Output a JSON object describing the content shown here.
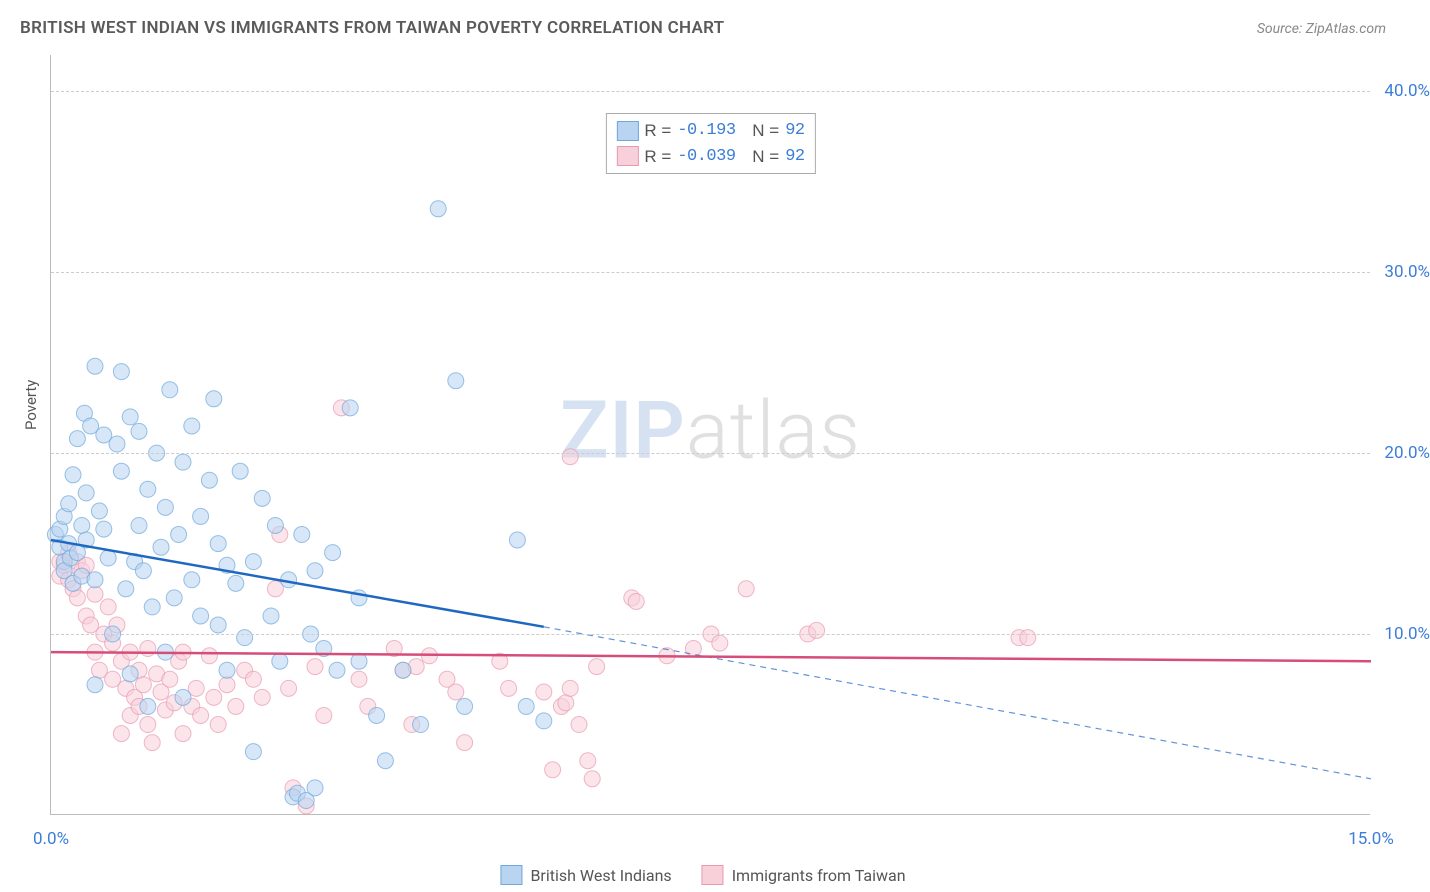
{
  "title": "BRITISH WEST INDIAN VS IMMIGRANTS FROM TAIWAN POVERTY CORRELATION CHART",
  "source": "Source: ZipAtlas.com",
  "y_axis_title": "Poverty",
  "watermark": {
    "part1": "ZIP",
    "part2": "atlas"
  },
  "colors": {
    "series_a_fill": "#b8d4f0",
    "series_a_stroke": "#6ea8dc",
    "series_a_line": "#1f68c1",
    "series_b_fill": "#f8d0da",
    "series_b_stroke": "#e89ab0",
    "series_b_line": "#d64d7a",
    "tick_text": "#3b7dd8",
    "grid": "#cccccc",
    "axis": "#bbbbbb",
    "title_text": "#5a5a5a",
    "source_text": "#888888"
  },
  "axes": {
    "x": {
      "min": 0.0,
      "max": 15.0,
      "ticks": [
        0.0,
        15.0
      ],
      "tick_labels": [
        "0.0%",
        "15.0%"
      ]
    },
    "y": {
      "min": 0.0,
      "max": 42.0,
      "grid_at": [
        10,
        20,
        30,
        40
      ],
      "tick_labels": [
        "10.0%",
        "20.0%",
        "30.0%",
        "40.0%"
      ]
    }
  },
  "stat_box": {
    "rows": [
      {
        "swatch": "a",
        "r_label": "R =",
        "r": "-0.193",
        "n_label": "N =",
        "n": "92"
      },
      {
        "swatch": "b",
        "r_label": "R =",
        "r": "-0.039",
        "n_label": "N =",
        "n": "92"
      }
    ]
  },
  "legend": {
    "a": "British West Indians",
    "b": "Immigrants from Taiwan"
  },
  "marker": {
    "radius": 8,
    "opacity": 0.55
  },
  "series_a": {
    "type": "scatter",
    "trend": {
      "solid_from_x": 0.0,
      "solid_to_x": 5.6,
      "y_start": 15.2,
      "y_at_solid_end": 10.4,
      "dashed_to_x": 15.0,
      "y_end": 2.0
    },
    "points": [
      [
        0.05,
        15.5
      ],
      [
        0.1,
        14.8
      ],
      [
        0.1,
        15.8
      ],
      [
        0.15,
        14.0
      ],
      [
        0.15,
        16.5
      ],
      [
        0.15,
        13.5
      ],
      [
        0.2,
        15.0
      ],
      [
        0.2,
        17.2
      ],
      [
        0.22,
        14.2
      ],
      [
        0.25,
        18.8
      ],
      [
        0.25,
        12.8
      ],
      [
        0.3,
        14.5
      ],
      [
        0.3,
        20.8
      ],
      [
        0.35,
        13.2
      ],
      [
        0.35,
        16.0
      ],
      [
        0.38,
        22.2
      ],
      [
        0.4,
        15.2
      ],
      [
        0.4,
        17.8
      ],
      [
        0.45,
        21.5
      ],
      [
        0.5,
        13.0
      ],
      [
        0.5,
        24.8
      ],
      [
        0.55,
        16.8
      ],
      [
        0.6,
        15.8
      ],
      [
        0.6,
        21.0
      ],
      [
        0.65,
        14.2
      ],
      [
        0.7,
        10.0
      ],
      [
        0.75,
        20.5
      ],
      [
        0.8,
        19.0
      ],
      [
        0.8,
        24.5
      ],
      [
        0.5,
        7.2
      ],
      [
        0.85,
        12.5
      ],
      [
        0.9,
        22.0
      ],
      [
        0.9,
        7.8
      ],
      [
        0.95,
        14.0
      ],
      [
        1.0,
        16.0
      ],
      [
        1.0,
        21.2
      ],
      [
        1.05,
        13.5
      ],
      [
        1.1,
        18.0
      ],
      [
        1.1,
        6.0
      ],
      [
        1.15,
        11.5
      ],
      [
        1.2,
        20.0
      ],
      [
        1.25,
        14.8
      ],
      [
        1.3,
        9.0
      ],
      [
        1.3,
        17.0
      ],
      [
        1.35,
        23.5
      ],
      [
        1.4,
        12.0
      ],
      [
        1.45,
        15.5
      ],
      [
        1.5,
        19.5
      ],
      [
        1.5,
        6.5
      ],
      [
        1.6,
        21.5
      ],
      [
        1.6,
        13.0
      ],
      [
        1.7,
        11.0
      ],
      [
        1.7,
        16.5
      ],
      [
        1.8,
        18.5
      ],
      [
        1.85,
        23.0
      ],
      [
        1.9,
        10.5
      ],
      [
        1.9,
        15.0
      ],
      [
        2.0,
        13.8
      ],
      [
        2.0,
        8.0
      ],
      [
        2.1,
        12.8
      ],
      [
        2.15,
        19.0
      ],
      [
        2.2,
        9.8
      ],
      [
        2.3,
        14.0
      ],
      [
        2.3,
        3.5
      ],
      [
        2.4,
        17.5
      ],
      [
        2.5,
        11.0
      ],
      [
        2.55,
        16.0
      ],
      [
        2.6,
        8.5
      ],
      [
        2.7,
        13.0
      ],
      [
        2.75,
        1.0
      ],
      [
        2.8,
        1.2
      ],
      [
        2.85,
        15.5
      ],
      [
        2.9,
        0.8
      ],
      [
        2.95,
        10.0
      ],
      [
        3.0,
        13.5
      ],
      [
        3.0,
        1.5
      ],
      [
        3.1,
        9.2
      ],
      [
        3.2,
        14.5
      ],
      [
        3.25,
        8.0
      ],
      [
        3.4,
        22.5
      ],
      [
        3.5,
        8.5
      ],
      [
        3.5,
        12.0
      ],
      [
        3.7,
        5.5
      ],
      [
        3.8,
        3.0
      ],
      [
        4.0,
        8.0
      ],
      [
        4.2,
        5.0
      ],
      [
        4.4,
        33.5
      ],
      [
        4.6,
        24.0
      ],
      [
        4.7,
        6.0
      ],
      [
        5.3,
        15.2
      ],
      [
        5.4,
        6.0
      ],
      [
        5.6,
        5.2
      ]
    ]
  },
  "series_b": {
    "type": "scatter",
    "trend": {
      "y_start": 9.0,
      "y_end": 8.5,
      "x_start": 0.0,
      "x_end": 15.0
    },
    "points": [
      [
        0.1,
        14.0
      ],
      [
        0.1,
        13.2
      ],
      [
        0.15,
        13.8
      ],
      [
        0.2,
        13.0
      ],
      [
        0.2,
        14.5
      ],
      [
        0.25,
        12.5
      ],
      [
        0.3,
        14.0
      ],
      [
        0.3,
        12.0
      ],
      [
        0.35,
        13.5
      ],
      [
        0.4,
        11.0
      ],
      [
        0.4,
        13.8
      ],
      [
        0.45,
        10.5
      ],
      [
        0.5,
        9.0
      ],
      [
        0.5,
        12.2
      ],
      [
        0.55,
        8.0
      ],
      [
        0.6,
        10.0
      ],
      [
        0.65,
        11.5
      ],
      [
        0.7,
        7.5
      ],
      [
        0.7,
        9.5
      ],
      [
        0.75,
        10.5
      ],
      [
        0.8,
        4.5
      ],
      [
        0.8,
        8.5
      ],
      [
        0.85,
        7.0
      ],
      [
        0.9,
        5.5
      ],
      [
        0.9,
        9.0
      ],
      [
        0.95,
        6.5
      ],
      [
        1.0,
        6.0
      ],
      [
        1.0,
        8.0
      ],
      [
        1.05,
        7.2
      ],
      [
        1.1,
        5.0
      ],
      [
        1.1,
        9.2
      ],
      [
        1.15,
        4.0
      ],
      [
        1.2,
        7.8
      ],
      [
        1.25,
        6.8
      ],
      [
        1.3,
        5.8
      ],
      [
        1.35,
        7.5
      ],
      [
        1.4,
        6.2
      ],
      [
        1.45,
        8.5
      ],
      [
        1.5,
        4.5
      ],
      [
        1.5,
        9.0
      ],
      [
        1.6,
        6.0
      ],
      [
        1.65,
        7.0
      ],
      [
        1.7,
        5.5
      ],
      [
        1.8,
        8.8
      ],
      [
        1.85,
        6.5
      ],
      [
        1.9,
        5.0
      ],
      [
        2.0,
        7.2
      ],
      [
        2.1,
        6.0
      ],
      [
        2.2,
        8.0
      ],
      [
        2.3,
        7.5
      ],
      [
        2.4,
        6.5
      ],
      [
        2.55,
        12.5
      ],
      [
        2.6,
        15.5
      ],
      [
        2.7,
        7.0
      ],
      [
        2.75,
        1.5
      ],
      [
        2.9,
        0.5
      ],
      [
        3.0,
        8.2
      ],
      [
        3.1,
        5.5
      ],
      [
        3.3,
        22.5
      ],
      [
        3.5,
        7.5
      ],
      [
        3.6,
        6.0
      ],
      [
        3.9,
        9.2
      ],
      [
        4.0,
        8.0
      ],
      [
        4.1,
        5.0
      ],
      [
        4.15,
        8.2
      ],
      [
        4.3,
        8.8
      ],
      [
        4.5,
        7.5
      ],
      [
        4.6,
        6.8
      ],
      [
        4.7,
        4.0
      ],
      [
        5.1,
        8.5
      ],
      [
        5.2,
        7.0
      ],
      [
        5.6,
        6.8
      ],
      [
        5.7,
        2.5
      ],
      [
        5.8,
        6.0
      ],
      [
        5.85,
        6.2
      ],
      [
        5.9,
        7.0
      ],
      [
        5.9,
        19.8
      ],
      [
        6.0,
        5.0
      ],
      [
        6.1,
        3.0
      ],
      [
        6.15,
        2.0
      ],
      [
        6.2,
        8.2
      ],
      [
        6.6,
        12.0
      ],
      [
        6.65,
        11.8
      ],
      [
        7.0,
        8.8
      ],
      [
        7.3,
        9.2
      ],
      [
        7.5,
        10.0
      ],
      [
        7.6,
        9.5
      ],
      [
        7.9,
        12.5
      ],
      [
        8.6,
        10.0
      ],
      [
        8.7,
        10.2
      ],
      [
        11.0,
        9.8
      ],
      [
        11.1,
        9.8
      ]
    ]
  }
}
